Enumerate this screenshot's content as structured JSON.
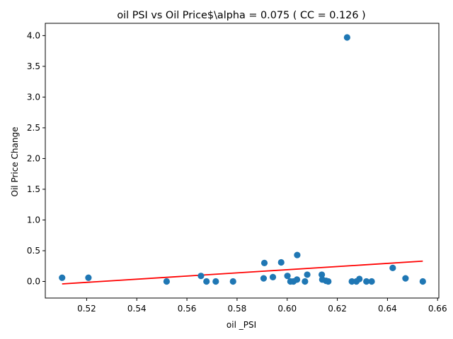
{
  "chart_data": {
    "type": "scatter",
    "title": "oil  PSI vs Oil Price$\\alpha = 0.075 ( CC = 0.126 )",
    "xlabel": "oil _PSI",
    "ylabel": "Oil Price Change",
    "xlim": [
      0.5035,
      0.6605
    ],
    "ylim": [
      -0.27,
      4.2
    ],
    "x_ticks": [
      0.52,
      0.54,
      0.56,
      0.58,
      0.6,
      0.62,
      0.64,
      0.66
    ],
    "x_tick_labels": [
      "0.52",
      "0.54",
      "0.56",
      "0.58",
      "0.60",
      "0.62",
      "0.64",
      "0.66"
    ],
    "y_ticks": [
      0.0,
      0.5,
      1.0,
      1.5,
      2.0,
      2.5,
      3.0,
      3.5,
      4.0
    ],
    "y_tick_labels": [
      "0.0",
      "0.5",
      "1.0",
      "1.5",
      "2.0",
      "2.5",
      "3.0",
      "3.5",
      "4.0"
    ],
    "grid": false,
    "colors": {
      "points": "#1f77b4",
      "fit_line": "#ff0000"
    },
    "series": [
      {
        "type": "scatter",
        "points": [
          {
            "x": 0.5102,
            "y": 0.06
          },
          {
            "x": 0.5207,
            "y": 0.06
          },
          {
            "x": 0.5519,
            "y": 0.0
          },
          {
            "x": 0.5656,
            "y": 0.09
          },
          {
            "x": 0.5678,
            "y": 0.0
          },
          {
            "x": 0.5715,
            "y": 0.0
          },
          {
            "x": 0.5784,
            "y": 0.0
          },
          {
            "x": 0.5906,
            "y": 0.05
          },
          {
            "x": 0.5909,
            "y": 0.3
          },
          {
            "x": 0.5943,
            "y": 0.07
          },
          {
            "x": 0.5976,
            "y": 0.31
          },
          {
            "x": 0.6001,
            "y": 0.09
          },
          {
            "x": 0.6013,
            "y": 0.0
          },
          {
            "x": 0.6025,
            "y": 0.0
          },
          {
            "x": 0.6039,
            "y": 0.03
          },
          {
            "x": 0.604,
            "y": 0.43
          },
          {
            "x": 0.6071,
            "y": 0.0
          },
          {
            "x": 0.608,
            "y": 0.11
          },
          {
            "x": 0.6138,
            "y": 0.11
          },
          {
            "x": 0.614,
            "y": 0.03
          },
          {
            "x": 0.6155,
            "y": 0.01
          },
          {
            "x": 0.6164,
            "y": 0.0
          },
          {
            "x": 0.6239,
            "y": 3.97
          },
          {
            "x": 0.6258,
            "y": 0.0
          },
          {
            "x": 0.6276,
            "y": 0.0
          },
          {
            "x": 0.6288,
            "y": 0.04
          },
          {
            "x": 0.6316,
            "y": 0.0
          },
          {
            "x": 0.6337,
            "y": 0.0
          },
          {
            "x": 0.6421,
            "y": 0.22
          },
          {
            "x": 0.6472,
            "y": 0.05
          },
          {
            "x": 0.6541,
            "y": 0.0
          }
        ]
      },
      {
        "type": "line",
        "points": [
          {
            "x": 0.5102,
            "y": -0.04
          },
          {
            "x": 0.6541,
            "y": 0.33
          }
        ]
      }
    ]
  }
}
